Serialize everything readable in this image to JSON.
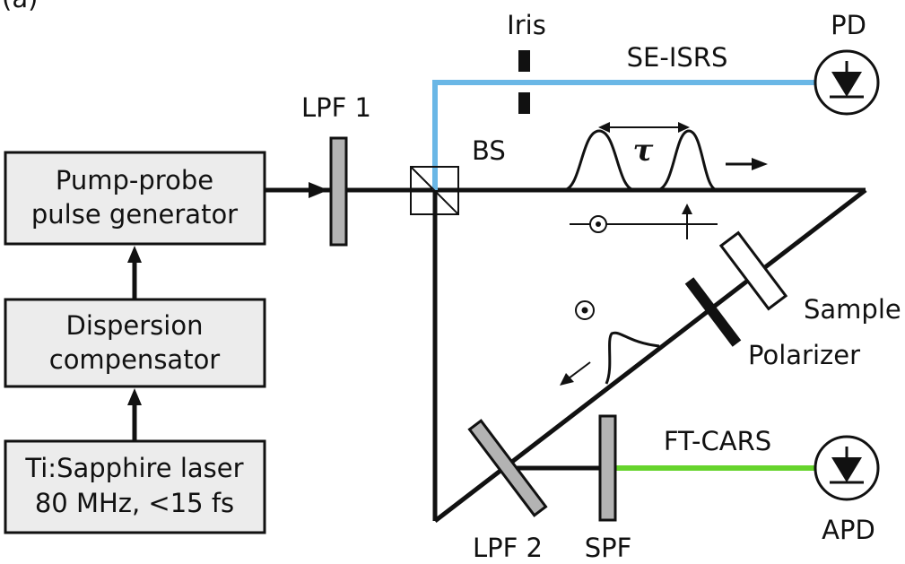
{
  "panel_label": "(a)",
  "blocks": {
    "pulse_generator": [
      "Pump-probe",
      "pulse generator"
    ],
    "dispersion": [
      "Dispersion",
      "compensator"
    ],
    "laser": [
      "Ti:Sapphire laser",
      "80 MHz, <15 fs"
    ]
  },
  "labels": {
    "lpf1": "LPF 1",
    "bs": "BS",
    "iris": "Iris",
    "se_isrs": "SE-ISRS",
    "pd": "PD",
    "tau": "τ",
    "sample": "Sample",
    "polarizer": "Polarizer",
    "ft_cars": "FT-CARS",
    "lpf2": "LPF 2",
    "spf": "SPF",
    "apd": "APD"
  },
  "colors": {
    "beam": "#111111",
    "se_isrs_beam": "#6ab7e6",
    "ft_cars_beam": "#66d42c",
    "box_fill": "#ececec",
    "filter_fill": "#b3b3b3"
  }
}
